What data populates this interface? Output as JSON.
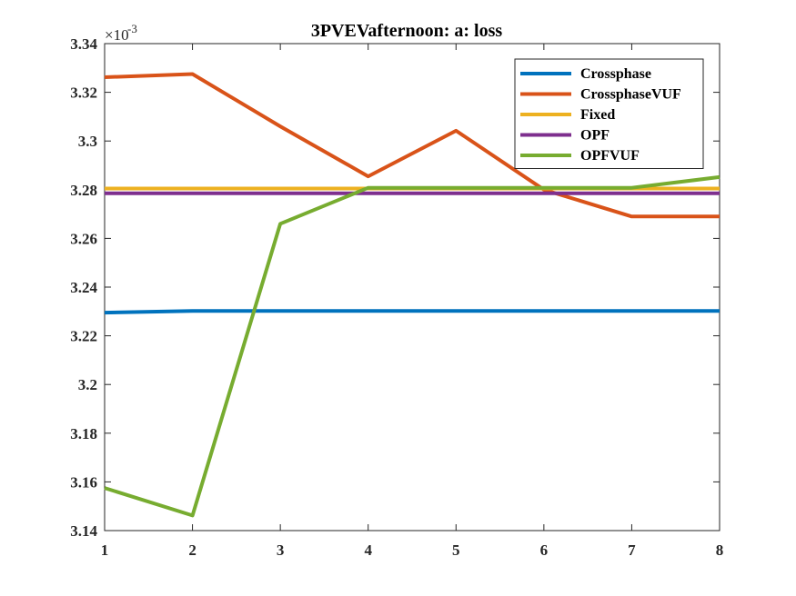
{
  "chart_data": {
    "type": "line",
    "title": "3PVEVafternoon: a: loss",
    "xlabel": "",
    "ylabel": "",
    "y_exponent_label": "×10",
    "y_exponent_power": "-3",
    "x": [
      1,
      2,
      3,
      4,
      5,
      6,
      7,
      8
    ],
    "xlim": [
      1,
      8
    ],
    "ylim": [
      3.14,
      3.34
    ],
    "x_ticks": [
      "1",
      "2",
      "3",
      "4",
      "5",
      "6",
      "7",
      "8"
    ],
    "y_ticks": [
      "3.14",
      "3.16",
      "3.18",
      "3.2",
      "3.22",
      "3.24",
      "3.26",
      "3.28",
      "3.3",
      "3.32",
      "3.34"
    ],
    "y_tick_values": [
      3.14,
      3.16,
      3.18,
      3.2,
      3.22,
      3.24,
      3.26,
      3.28,
      3.3,
      3.32,
      3.34
    ],
    "grid": false,
    "legend_position": "top-right",
    "series": [
      {
        "name": "Crossphase",
        "color": "#0072BD",
        "values": [
          3.2295,
          3.2302,
          3.2302,
          3.2302,
          3.2302,
          3.2302,
          3.2302,
          3.2302
        ]
      },
      {
        "name": "CrossphaseVUF",
        "color": "#D95319",
        "values": [
          3.3262,
          3.3275,
          3.306,
          3.2855,
          3.3042,
          3.28,
          3.269,
          3.269
        ]
      },
      {
        "name": "Fixed",
        "color": "#EDB120",
        "values": [
          3.2805,
          3.2805,
          3.2805,
          3.2805,
          3.2805,
          3.2805,
          3.2805,
          3.2805
        ]
      },
      {
        "name": "OPF",
        "color": "#7E2F8E",
        "values": [
          3.2785,
          3.2785,
          3.2785,
          3.2785,
          3.2785,
          3.2785,
          3.2785,
          3.2785
        ]
      },
      {
        "name": "OPFVUF",
        "color": "#77AC30",
        "values": [
          3.1575,
          3.1462,
          3.266,
          3.2808,
          3.2808,
          3.2808,
          3.2808,
          3.2852
        ]
      }
    ]
  }
}
